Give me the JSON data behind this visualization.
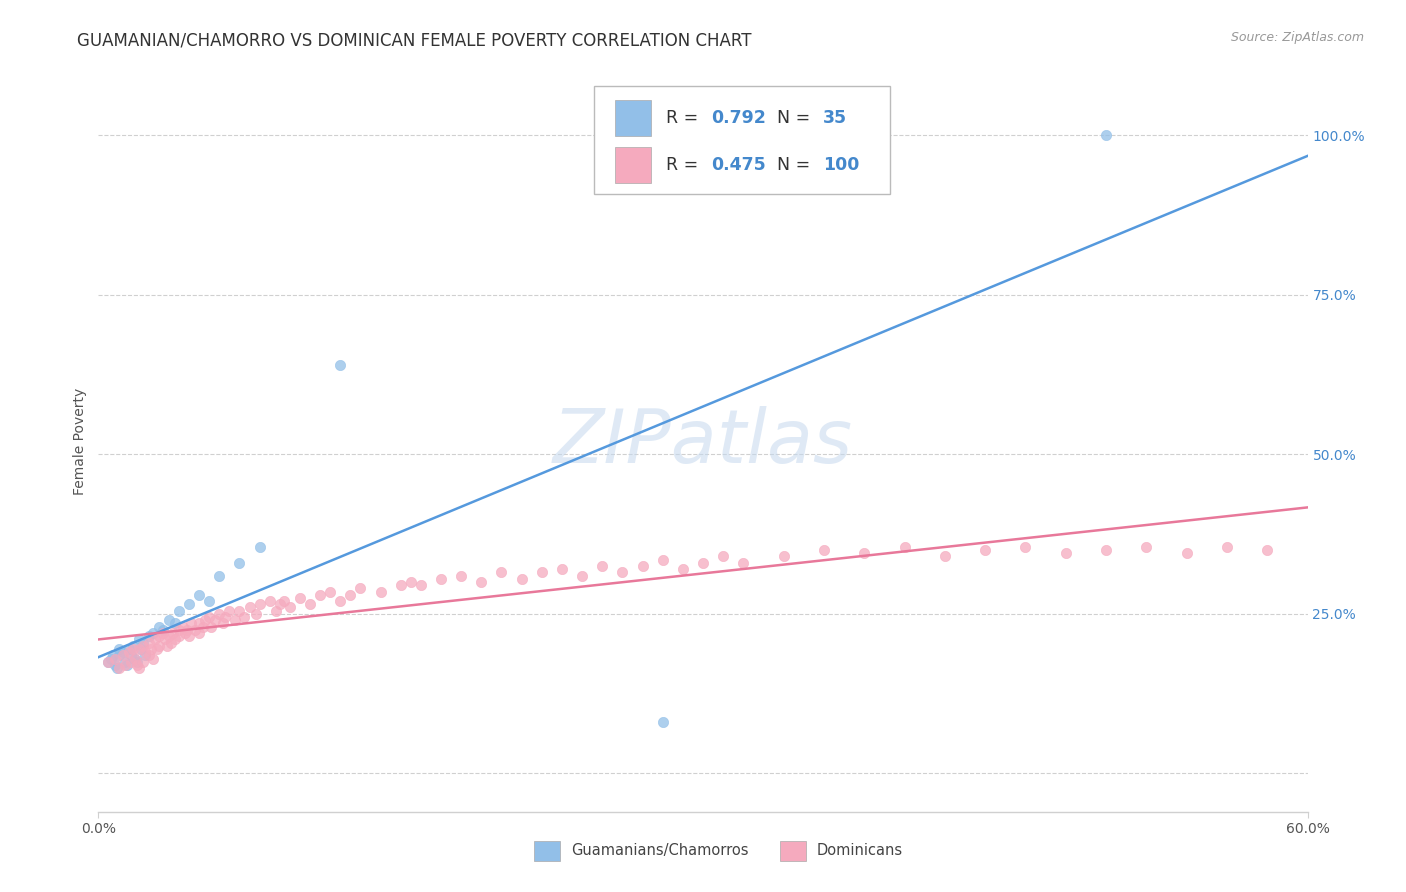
{
  "title": "GUAMANIAN/CHAMORRO VS DOMINICAN FEMALE POVERTY CORRELATION CHART",
  "source": "Source: ZipAtlas.com",
  "ylabel": "Female Poverty",
  "xlim": [
    0.0,
    0.6
  ],
  "ylim": [
    -0.06,
    1.1
  ],
  "guamanian_R": 0.792,
  "guamanian_N": 35,
  "dominican_R": 0.475,
  "dominican_N": 100,
  "guamanian_color": "#92bfe8",
  "dominican_color": "#f5aabe",
  "guamanian_line_color": "#5599dd",
  "dominican_line_color": "#e8789a",
  "watermark_color": "#c5d8ee",
  "background_color": "#ffffff",
  "grid_color": "#d0d0d0",
  "title_fontsize": 12,
  "legend_color": "#4488cc",
  "guam_x": [
    0.005,
    0.006,
    0.007,
    0.008,
    0.009,
    0.01,
    0.01,
    0.012,
    0.013,
    0.014,
    0.015,
    0.016,
    0.017,
    0.018,
    0.019,
    0.02,
    0.021,
    0.022,
    0.023,
    0.025,
    0.027,
    0.03,
    0.032,
    0.035,
    0.038,
    0.04,
    0.045,
    0.05,
    0.055,
    0.06,
    0.07,
    0.08,
    0.12,
    0.28,
    0.5
  ],
  "guam_y": [
    0.175,
    0.18,
    0.185,
    0.17,
    0.165,
    0.195,
    0.185,
    0.19,
    0.175,
    0.17,
    0.195,
    0.185,
    0.2,
    0.18,
    0.175,
    0.21,
    0.195,
    0.205,
    0.185,
    0.215,
    0.22,
    0.23,
    0.225,
    0.24,
    0.235,
    0.255,
    0.265,
    0.28,
    0.27,
    0.31,
    0.33,
    0.355,
    0.64,
    0.08,
    1.0
  ],
  "dom_x": [
    0.005,
    0.008,
    0.01,
    0.012,
    0.013,
    0.015,
    0.016,
    0.017,
    0.018,
    0.019,
    0.02,
    0.02,
    0.022,
    0.022,
    0.023,
    0.025,
    0.025,
    0.026,
    0.027,
    0.028,
    0.029,
    0.03,
    0.03,
    0.032,
    0.033,
    0.034,
    0.035,
    0.036,
    0.037,
    0.038,
    0.04,
    0.04,
    0.042,
    0.043,
    0.044,
    0.045,
    0.046,
    0.048,
    0.05,
    0.05,
    0.052,
    0.053,
    0.055,
    0.056,
    0.058,
    0.06,
    0.062,
    0.063,
    0.065,
    0.068,
    0.07,
    0.072,
    0.075,
    0.078,
    0.08,
    0.085,
    0.088,
    0.09,
    0.092,
    0.095,
    0.1,
    0.105,
    0.11,
    0.115,
    0.12,
    0.125,
    0.13,
    0.14,
    0.15,
    0.155,
    0.16,
    0.17,
    0.18,
    0.19,
    0.2,
    0.21,
    0.22,
    0.23,
    0.24,
    0.25,
    0.26,
    0.27,
    0.28,
    0.29,
    0.3,
    0.31,
    0.32,
    0.34,
    0.36,
    0.38,
    0.4,
    0.42,
    0.44,
    0.46,
    0.48,
    0.5,
    0.52,
    0.54,
    0.56,
    0.58
  ],
  "dom_y": [
    0.175,
    0.18,
    0.165,
    0.185,
    0.17,
    0.19,
    0.175,
    0.195,
    0.18,
    0.17,
    0.195,
    0.165,
    0.2,
    0.175,
    0.19,
    0.205,
    0.185,
    0.195,
    0.18,
    0.21,
    0.195,
    0.215,
    0.2,
    0.22,
    0.21,
    0.2,
    0.215,
    0.205,
    0.22,
    0.21,
    0.225,
    0.215,
    0.23,
    0.22,
    0.225,
    0.215,
    0.235,
    0.225,
    0.235,
    0.22,
    0.23,
    0.24,
    0.245,
    0.23,
    0.24,
    0.25,
    0.235,
    0.245,
    0.255,
    0.24,
    0.255,
    0.245,
    0.26,
    0.25,
    0.265,
    0.27,
    0.255,
    0.265,
    0.27,
    0.26,
    0.275,
    0.265,
    0.28,
    0.285,
    0.27,
    0.28,
    0.29,
    0.285,
    0.295,
    0.3,
    0.295,
    0.305,
    0.31,
    0.3,
    0.315,
    0.305,
    0.315,
    0.32,
    0.31,
    0.325,
    0.315,
    0.325,
    0.335,
    0.32,
    0.33,
    0.34,
    0.33,
    0.34,
    0.35,
    0.345,
    0.355,
    0.34,
    0.35,
    0.355,
    0.345,
    0.35,
    0.355,
    0.345,
    0.355,
    0.35
  ]
}
